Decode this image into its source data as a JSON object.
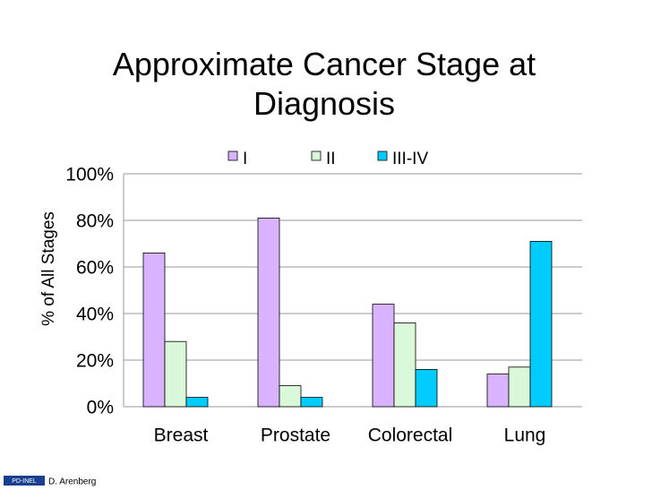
{
  "chart_data": {
    "type": "bar",
    "title": "Approximate Cancer Stage at Diagnosis",
    "y_label": "% of All Stages",
    "categories": [
      "Breast",
      "Prostate",
      "Colorectal",
      "Lung"
    ],
    "series": [
      {
        "name": "I",
        "color": "#d9b3ff",
        "values": [
          66,
          81,
          44,
          14
        ]
      },
      {
        "name": "II",
        "color": "#d9f7d9",
        "values": [
          28,
          9,
          36,
          17
        ]
      },
      {
        "name": "III-IV",
        "color": "#00ccff",
        "values": [
          4,
          4,
          16,
          71
        ]
      }
    ],
    "ylim": [
      0,
      100
    ],
    "yticks": [
      {
        "value": 0,
        "label": "0%"
      },
      {
        "value": 20,
        "label": "20%"
      },
      {
        "value": 40,
        "label": "40%"
      },
      {
        "value": 60,
        "label": "60%"
      },
      {
        "value": 80,
        "label": "80%"
      },
      {
        "value": 100,
        "label": "100%"
      }
    ],
    "grid": true,
    "legend": "top"
  },
  "footer": {
    "logo": "PD-INEL",
    "author": "D. Arenberg"
  }
}
